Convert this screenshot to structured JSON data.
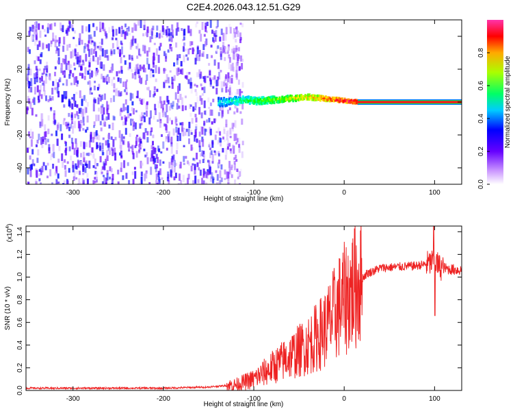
{
  "title": "C2E4.2026.043.12.51.G29",
  "colors": {
    "snr_line": "#ee2222",
    "axis": "#000000",
    "background": "#ffffff"
  },
  "chart_data": [
    {
      "type": "heatmap",
      "title": "C2E4.2026.043.12.51.G29",
      "xlabel": "Height of straight line (km)",
      "ylabel": "Frequency (Hz)",
      "xlim": [
        -352,
        130
      ],
      "ylim": [
        -50,
        50
      ],
      "xticks": [
        -300,
        -200,
        -100,
        0,
        100
      ],
      "yticks": [
        -40,
        -20,
        0,
        20,
        40
      ],
      "colorbar": {
        "label": "Normalized spectral amplitude",
        "range": [
          0,
          1
        ],
        "ticks": [
          0.0,
          0.2,
          0.4,
          0.6,
          0.8
        ],
        "tick_labels": [
          "0.0",
          "0.2",
          "0.4",
          "0.6",
          "0.8"
        ],
        "colormap": [
          "#ffffff",
          "#6600ff",
          "#0000ff",
          "#00ffff",
          "#00ff00",
          "#ffff00",
          "#ff0000",
          "#ff33cc"
        ]
      },
      "regions": [
        {
          "name": "diffuse noise",
          "x": [
            -352,
            -125
          ],
          "freq": [
            -50,
            50
          ],
          "amplitude": [
            0.0,
            0.15
          ]
        },
        {
          "name": "signal band",
          "x": [
            -140,
            15
          ],
          "freq_center": [
            0,
            3
          ],
          "amplitude": [
            0.2,
            0.8
          ]
        },
        {
          "name": "tone line",
          "x": [
            15,
            130
          ],
          "freq_center": 0,
          "amplitude": 1.0
        }
      ]
    },
    {
      "type": "line",
      "xlabel": "Height of straight line (km)",
      "ylabel": "SNR (10 * v/v)",
      "scale_label": "(x10",
      "scale_exp": "4",
      "scale_close": ")",
      "xlim": [
        -352,
        130
      ],
      "ylim": [
        0,
        1.45
      ],
      "xticks": [
        -300,
        -200,
        -100,
        0,
        100
      ],
      "yticks": [
        0.0,
        0.2,
        0.4,
        0.6,
        0.8,
        1.0,
        1.2,
        1.4
      ],
      "ytick_labels": [
        "0.0",
        "0.2",
        "0.4",
        "0.6",
        "0.8",
        "1.0",
        "1.2",
        "1.4"
      ],
      "series": [
        {
          "name": "SNR",
          "x": [
            -352,
            -300,
            -250,
            -200,
            -150,
            -120,
            -100,
            -80,
            -60,
            -40,
            -20,
            -5,
            5,
            15,
            25,
            40,
            60,
            80,
            95,
            100,
            105,
            115,
            130
          ],
          "values": [
            0.02,
            0.02,
            0.02,
            0.02,
            0.03,
            0.05,
            0.1,
            0.2,
            0.3,
            0.4,
            0.55,
            0.75,
            0.85,
            0.95,
            1.03,
            1.08,
            1.09,
            1.1,
            1.12,
            1.15,
            1.09,
            1.07,
            1.06
          ]
        }
      ]
    }
  ]
}
